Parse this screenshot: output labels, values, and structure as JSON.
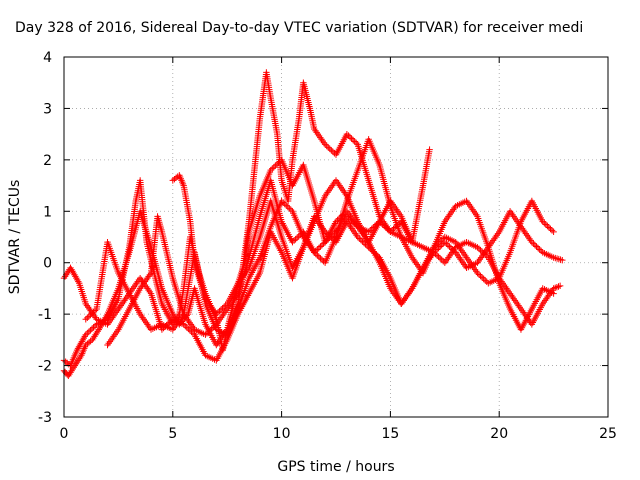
{
  "chart_data": {
    "type": "scatter",
    "title": "Day 328 of 2016, Sidereal Day-to-day VTEC variation (SDTVAR) for receiver medi",
    "xlabel": "GPS time / hours",
    "ylabel": "SDTVAR / TECUs",
    "xlim": [
      0,
      25
    ],
    "ylim": [
      -3,
      4
    ],
    "xticks": [
      0,
      5,
      10,
      15,
      20,
      25
    ],
    "yticks": [
      -3,
      -2,
      -1,
      0,
      1,
      2,
      3,
      4
    ],
    "xtick_labels": [
      "0",
      "5",
      "10",
      "15",
      "20",
      "25"
    ],
    "ytick_labels": [
      "-3",
      "-2",
      "-1",
      "0",
      "1",
      "2",
      "3",
      "4"
    ],
    "grid": true,
    "marker": "plus",
    "color": "#ff0000",
    "series": [
      {
        "name": "track1",
        "x": [
          0.0,
          0.2,
          0.5,
          0.8,
          1.0,
          1.3,
          1.6,
          2.0,
          2.5,
          3.0,
          3.5,
          4.0,
          4.5,
          5.0,
          5.3,
          5.7,
          6.0,
          6.5,
          7.0,
          7.5,
          8.0,
          8.5,
          9.0,
          9.3,
          9.5,
          9.8,
          10.0,
          10.3,
          10.5,
          10.8,
          11.0,
          11.3,
          11.5,
          12.0,
          12.5,
          13.0,
          13.5,
          14.0,
          14.5,
          15.0,
          15.5,
          16.0,
          16.5,
          17.0,
          17.5,
          18.0,
          18.5,
          19.0,
          19.5,
          20.0,
          20.5,
          21.0,
          21.5,
          22.0,
          22.5,
          22.8
        ],
        "y": [
          -2.1,
          -2.2,
          -2.0,
          -1.8,
          -1.6,
          -1.5,
          -1.3,
          -1.0,
          -0.5,
          0.2,
          1.0,
          0.3,
          -0.5,
          -1.0,
          -1.2,
          -1.0,
          -0.5,
          -1.2,
          -1.6,
          -1.3,
          -0.8,
          0.8,
          2.8,
          3.7,
          3.2,
          2.5,
          1.6,
          1.2,
          2.0,
          2.8,
          3.5,
          3.0,
          2.6,
          2.3,
          2.1,
          2.5,
          2.3,
          1.6,
          0.9,
          0.6,
          0.8,
          0.4,
          0.3,
          0.2,
          0.0,
          0.3,
          0.4,
          0.3,
          0.1,
          -0.3,
          -0.6,
          -0.9,
          -1.2,
          -0.8,
          -0.5,
          -0.45
        ]
      },
      {
        "name": "track2",
        "x": [
          0.0,
          0.3,
          0.6,
          1.0,
          1.5,
          2.0,
          2.5,
          3.0,
          3.3,
          3.5,
          3.8,
          4.2,
          4.5,
          5.0,
          5.3,
          5.5,
          5.8,
          6.2,
          6.5,
          7.0,
          7.3,
          7.5,
          8.0,
          8.3,
          8.5,
          9.0,
          9.5,
          10.0,
          10.5,
          11.0,
          11.5,
          12.0,
          12.5,
          13.0,
          13.5,
          14.0,
          14.5,
          15.0,
          15.5,
          16.0,
          16.5,
          16.8
        ],
        "y": [
          -1.9,
          -2.0,
          -1.7,
          -1.4,
          -1.2,
          -1.1,
          -0.7,
          0.3,
          1.2,
          1.6,
          0.4,
          -0.3,
          -0.8,
          -1.2,
          -1.0,
          -0.5,
          0.5,
          -0.2,
          -0.6,
          -1.1,
          -1.7,
          -1.3,
          -0.4,
          0.0,
          0.6,
          1.3,
          1.8,
          2.0,
          1.5,
          1.9,
          1.2,
          0.4,
          0.6,
          0.9,
          0.7,
          0.4,
          0.8,
          1.2,
          0.9,
          0.4,
          1.5,
          2.2
        ]
      },
      {
        "name": "track3",
        "x": [
          0.0,
          0.3,
          0.7,
          1.0,
          1.5,
          2.0,
          2.5,
          3.0,
          3.5,
          4.0,
          4.5,
          5.0,
          5.5,
          6.0,
          6.5,
          7.0,
          7.5,
          8.0,
          8.5,
          9.0,
          9.5,
          10.0,
          10.5,
          11.0,
          11.5,
          12.0,
          12.5,
          13.0,
          13.5,
          14.0,
          14.5,
          15.0,
          15.5,
          16.0,
          16.5,
          17.0,
          17.5,
          18.0,
          18.5,
          19.0,
          19.5,
          20.0,
          20.5,
          21.0,
          21.5,
          22.0,
          22.5,
          22.9
        ],
        "y": [
          -0.3,
          -0.1,
          -0.4,
          -0.8,
          -1.1,
          -1.2,
          -0.9,
          -0.6,
          -0.3,
          -0.6,
          -1.3,
          -1.1,
          -1.2,
          -1.4,
          -1.8,
          -1.9,
          -1.5,
          -1.0,
          -0.6,
          -0.2,
          0.6,
          0.2,
          -0.3,
          0.3,
          0.9,
          0.6,
          0.4,
          0.8,
          0.5,
          0.3,
          0.1,
          -0.3,
          -0.8,
          -0.5,
          -0.1,
          0.2,
          0.4,
          0.2,
          -0.1,
          0.0,
          0.3,
          0.6,
          1.0,
          0.7,
          0.4,
          0.2,
          0.1,
          0.05
        ]
      },
      {
        "name": "track4",
        "x": [
          2.0,
          2.5,
          3.0,
          3.5,
          4.0,
          4.3,
          4.5,
          5.0,
          5.5,
          6.0,
          6.5,
          7.0,
          7.5,
          8.0,
          8.5,
          9.0,
          9.5,
          10.0,
          10.5,
          11.0,
          11.5,
          12.0,
          12.5,
          13.0,
          13.5,
          14.0,
          14.5,
          15.0,
          15.5,
          16.0,
          16.5,
          17.0,
          17.5,
          18.0,
          18.5,
          19.0,
          19.5,
          20.0,
          20.5,
          21.0,
          21.5,
          22.0,
          22.5
        ],
        "y": [
          -1.6,
          -1.3,
          -0.9,
          -0.5,
          -0.2,
          0.9,
          0.6,
          -0.3,
          -1.0,
          -1.3,
          -1.4,
          -1.2,
          -0.9,
          -0.6,
          0.1,
          0.9,
          1.6,
          0.8,
          0.4,
          0.6,
          0.2,
          0.0,
          0.5,
          1.2,
          1.8,
          2.4,
          1.9,
          1.1,
          0.5,
          0.1,
          -0.2,
          0.3,
          0.8,
          1.1,
          1.2,
          0.9,
          0.3,
          -0.4,
          -0.9,
          -1.3,
          -0.9,
          -0.5,
          -0.6
        ]
      },
      {
        "name": "track5",
        "x": [
          5.0,
          5.3,
          5.5,
          5.8,
          6.0,
          6.5,
          7.0,
          7.5,
          8.0,
          8.5,
          9.0,
          9.5,
          10.0,
          10.5,
          11.0,
          11.5,
          12.0,
          12.5,
          13.0,
          13.5,
          14.0,
          14.5,
          15.0,
          15.5,
          16.0,
          16.5,
          17.0,
          17.5,
          18.0,
          18.5,
          19.0,
          19.5,
          20.0,
          20.5,
          21.0,
          21.5,
          22.0,
          22.5
        ],
        "y": [
          1.6,
          1.7,
          1.5,
          0.8,
          0.0,
          -0.7,
          -1.0,
          -0.8,
          -0.4,
          -0.1,
          0.5,
          1.2,
          0.5,
          -0.1,
          0.3,
          0.8,
          1.3,
          1.6,
          1.3,
          0.8,
          0.4,
          0.0,
          -0.5,
          -0.8,
          -0.5,
          -0.1,
          0.3,
          0.5,
          0.4,
          0.1,
          -0.2,
          -0.4,
          -0.3,
          0.2,
          0.8,
          1.2,
          0.8,
          0.6
        ]
      },
      {
        "name": "track6",
        "x": [
          1.0,
          1.5,
          2.0,
          2.5,
          3.0,
          3.5,
          4.0,
          4.5,
          5.0,
          5.5,
          6.0,
          6.5,
          7.0,
          7.5,
          8.0,
          8.5,
          9.0,
          9.5,
          10.0,
          10.5,
          11.0,
          11.5,
          12.0,
          12.5,
          13.0,
          13.5,
          14.0,
          14.5,
          15.0,
          15.5,
          16.0
        ],
        "y": [
          -1.1,
          -0.9,
          0.4,
          -0.2,
          -0.6,
          -1.0,
          -1.3,
          -1.2,
          -1.3,
          -1.0,
          0.2,
          -0.8,
          -1.3,
          -1.4,
          -0.9,
          -0.3,
          0.1,
          0.7,
          1.2,
          1.0,
          0.5,
          0.2,
          0.4,
          0.8,
          1.0,
          0.7,
          0.6,
          0.8,
          0.6,
          0.5,
          0.4
        ]
      }
    ]
  }
}
